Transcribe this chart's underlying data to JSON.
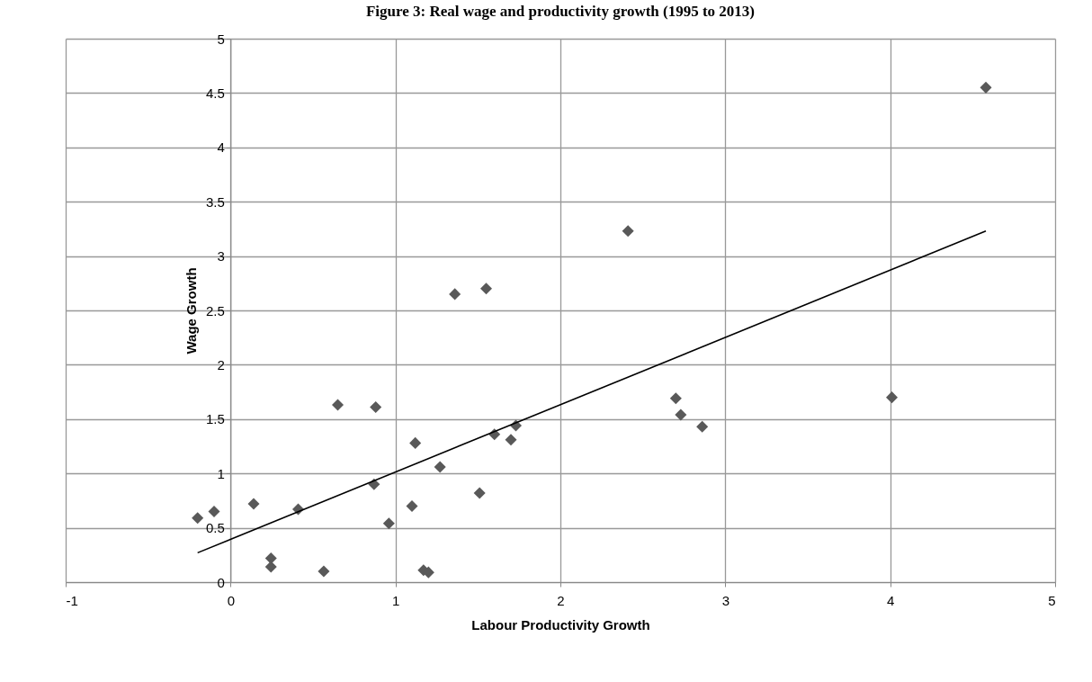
{
  "chart_data": {
    "type": "scatter",
    "title": "Figure 3: Real wage and productivity growth (1995 to 2013)",
    "xlabel": "Labour Productivity Growth",
    "ylabel": "Wage Growth",
    "series": [
      {
        "color": "#595959",
        "marker": "diamond",
        "x": [
          -0.2,
          -0.1,
          0.14,
          0.245,
          0.245,
          0.41,
          0.565,
          0.65,
          0.88,
          0.87,
          0.96,
          1.1,
          1.12,
          1.27,
          1.17,
          1.2,
          1.51,
          1.6,
          1.7,
          1.73,
          1.36,
          1.55,
          2.41,
          2.7,
          2.73,
          2.86,
          4.01,
          4.58
        ],
        "values": [
          0.59,
          0.65,
          0.72,
          0.22,
          0.14,
          0.67,
          0.1,
          1.63,
          1.61,
          0.9,
          0.54,
          0.7,
          1.28,
          1.06,
          0.11,
          0.09,
          0.82,
          1.36,
          1.31,
          1.44,
          2.65,
          2.7,
          3.23,
          1.69,
          1.54,
          1.43,
          1.7,
          4.55
        ]
      },
      {
        "type": "line",
        "color": "#000000",
        "x": [
          -0.2,
          4.58
        ],
        "values": [
          0.27,
          3.23
        ]
      }
    ],
    "xlim": [
      -1,
      5
    ],
    "xticks": [
      -1,
      0,
      1,
      2,
      3,
      4,
      5
    ],
    "ylim": [
      0,
      5
    ],
    "yticks": [
      0,
      0.5,
      1,
      1.5,
      2,
      2.5,
      3,
      3.5,
      4,
      4.5,
      5
    ],
    "grid": true
  }
}
